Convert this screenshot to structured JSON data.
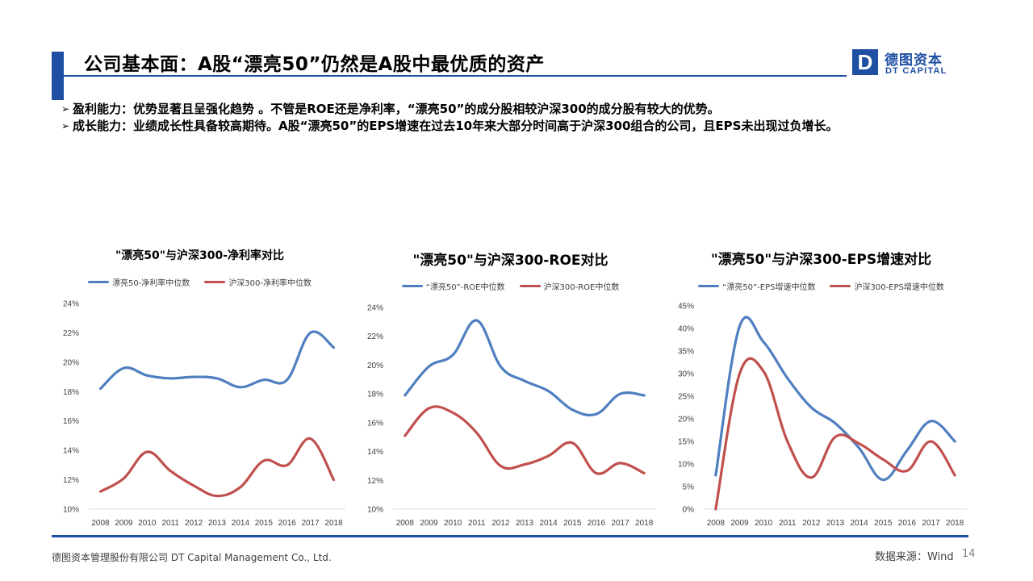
{
  "header": {
    "title": "公司基本面：A股“漂亮50”仍然是A股中最优质的资产",
    "logo_mark": "D",
    "logo_cn": "德图资本",
    "logo_en": "DT CAPITAL"
  },
  "bullets": [
    {
      "marker": "➢",
      "text": "盈利能力：优势显著且呈强化趋势 。不管是ROE还是净利率，“漂亮50”的成分股相较沪深300的成分股有较大的优势。"
    },
    {
      "marker": "➢",
      "text": "成长能力：业绩成长性具备较高期待。A股“漂亮50”的EPS增速在过去10年来大部分时间高于沪深300组合的公司，且EPS未出现过负增长。"
    }
  ],
  "footer": {
    "company": "德图资本管理股份有限公司  DT Capital Management Co., Ltd.",
    "source": "数据来源：Wind",
    "page": "14"
  },
  "colors": {
    "brand": "#1f4fa3",
    "series_blue": "#4f7fc0",
    "series_red": "#c0504d"
  },
  "chart_data": [
    {
      "type": "line",
      "title": "\"漂亮50\"与沪深300-净利率对比",
      "categories": [
        "2008",
        "2009",
        "2010",
        "2011",
        "2012",
        "2013",
        "2014",
        "2015",
        "2016",
        "2017",
        "2018"
      ],
      "ylim": [
        0.1,
        0.24
      ],
      "yticks": [
        "10%",
        "12%",
        "14%",
        "16%",
        "18%",
        "20%",
        "22%",
        "24%"
      ],
      "grid": false,
      "legend": "top",
      "series": [
        {
          "name": "漂亮50-净利率中位数",
          "color": "#4f7fc0",
          "values": [
            0.182,
            0.196,
            0.191,
            0.189,
            0.19,
            0.189,
            0.183,
            0.188,
            0.188,
            0.22,
            0.21
          ]
        },
        {
          "name": "沪深300-净利率中位数",
          "color": "#c0504d",
          "values": [
            0.112,
            0.121,
            0.139,
            0.126,
            0.116,
            0.109,
            0.115,
            0.133,
            0.13,
            0.148,
            0.12
          ]
        }
      ]
    },
    {
      "type": "line",
      "title": "\"漂亮50\"与沪深300-ROE对比",
      "categories": [
        "2008",
        "2009",
        "2010",
        "2011",
        "2012",
        "2013",
        "2014",
        "2015",
        "2016",
        "2017",
        "2018"
      ],
      "ylim": [
        0.1,
        0.24
      ],
      "yticks": [
        "10%",
        "12%",
        "14%",
        "16%",
        "18%",
        "20%",
        "22%",
        "24%"
      ],
      "grid": false,
      "legend": "top",
      "series": [
        {
          "name": "“漂亮50”-ROE中位数",
          "color": "#4f7fc0",
          "values": [
            0.179,
            0.199,
            0.207,
            0.231,
            0.199,
            0.189,
            0.182,
            0.169,
            0.166,
            0.18,
            0.179
          ]
        },
        {
          "name": "沪深300-ROE中位数",
          "color": "#c0504d",
          "values": [
            0.151,
            0.17,
            0.167,
            0.153,
            0.13,
            0.131,
            0.137,
            0.146,
            0.125,
            0.132,
            0.125
          ]
        }
      ]
    },
    {
      "type": "line",
      "title": "\"漂亮50\"与沪深300-EPS增速对比",
      "categories": [
        "2008",
        "2009",
        "2010",
        "2011",
        "2012",
        "2013",
        "2014",
        "2015",
        "2016",
        "2017",
        "2018"
      ],
      "ylim": [
        0.0,
        0.45
      ],
      "yticks": [
        "0%",
        "5%",
        "10%",
        "15%",
        "20%",
        "25%",
        "30%",
        "35%",
        "40%",
        "45%"
      ],
      "grid": false,
      "legend": "top",
      "series": [
        {
          "name": "“漂亮50”-EPS增速中位数",
          "color": "#4f7fc0",
          "values": [
            0.075,
            0.405,
            0.37,
            0.29,
            0.225,
            0.19,
            0.135,
            0.065,
            0.13,
            0.195,
            0.15
          ]
        },
        {
          "name": "沪深300-EPS增速中位数",
          "color": "#c0504d",
          "values": [
            0.0,
            0.3,
            0.305,
            0.15,
            0.07,
            0.16,
            0.145,
            0.11,
            0.085,
            0.15,
            0.075
          ]
        }
      ]
    }
  ]
}
